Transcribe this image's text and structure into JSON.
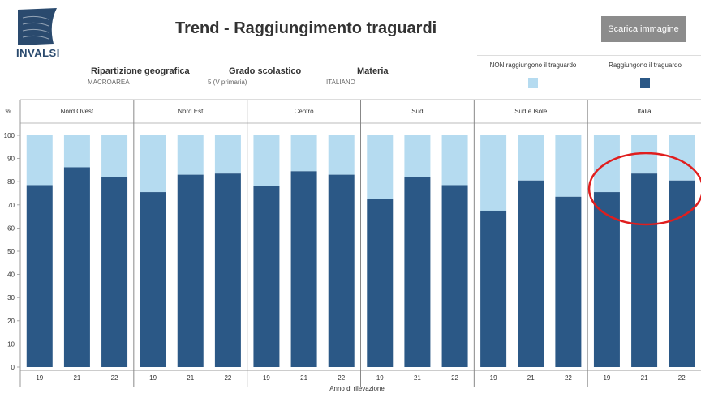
{
  "header": {
    "logo_text": "INVALSI",
    "title": "Trend - Raggiungimento traguardi",
    "download_label": "Scarica immagine"
  },
  "filters": [
    {
      "label": "Ripartizione geografica",
      "value": "MACROAREA"
    },
    {
      "label": "Grado scolastico",
      "value": "5 (V primaria)"
    },
    {
      "label": "Materia",
      "value": "ITALIANO"
    }
  ],
  "legend": {
    "not_reached": "NON raggiungono il traguardo",
    "reached": "Raggiungono il traguardo"
  },
  "colors": {
    "reached": "#2b5886",
    "not_reached": "#b5dbf0",
    "highlight": "#e01e1e"
  },
  "chart_data": {
    "type": "bar",
    "stacked": true,
    "panels": [
      "Nord Ovest",
      "Nord Est",
      "Centro",
      "Sud",
      "Sud e Isole",
      "Italia"
    ],
    "years": [
      "19",
      "21",
      "22"
    ],
    "series": [
      {
        "name": "Raggiungono il traguardo",
        "values": [
          [
            78.5,
            86.2,
            82.0
          ],
          [
            75.5,
            83.0,
            83.5
          ],
          [
            78.0,
            84.5,
            83.0
          ],
          [
            72.5,
            82.0,
            78.5
          ],
          [
            67.5,
            80.5,
            73.5
          ],
          [
            75.5,
            83.5,
            80.5
          ]
        ]
      },
      {
        "name": "NON raggiungono il traguardo",
        "values": [
          [
            21.5,
            13.8,
            18.0
          ],
          [
            24.5,
            17.0,
            16.5
          ],
          [
            22.0,
            15.5,
            17.0
          ],
          [
            27.5,
            18.0,
            21.5
          ],
          [
            32.5,
            19.5,
            26.5
          ],
          [
            24.5,
            16.5,
            19.5
          ]
        ]
      }
    ],
    "ylabel": "%",
    "xlabel": "Anno di rilevazione",
    "ylim": [
      0,
      100
    ],
    "yticks": [
      "0",
      "10",
      "20",
      "30",
      "40",
      "50",
      "60",
      "70",
      "80",
      "90",
      "100"
    ],
    "highlighted_panel": "Italia"
  }
}
